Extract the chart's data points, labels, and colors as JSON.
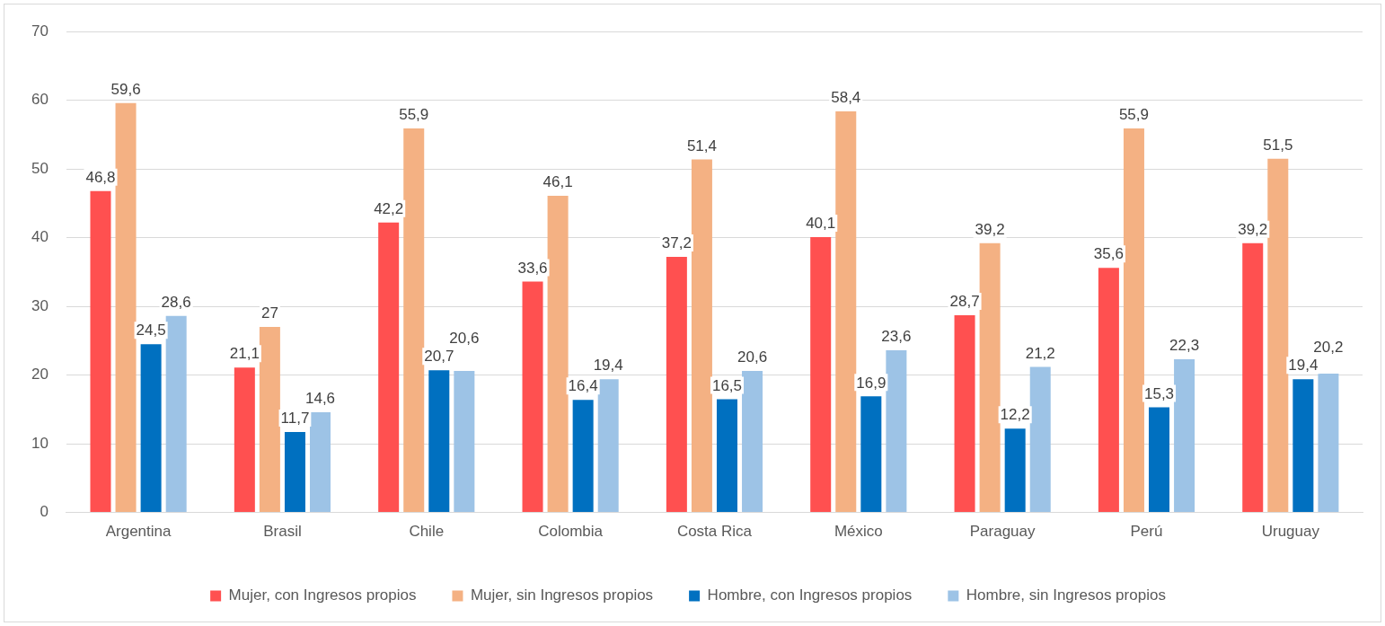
{
  "chart_data": {
    "type": "bar",
    "categories": [
      "Argentina",
      "Brasil",
      "Chile",
      "Colombia",
      "Costa Rica",
      "México",
      "Paraguay",
      "Perú",
      "Uruguay"
    ],
    "ylim": [
      0,
      70
    ],
    "yticks": [
      0,
      10,
      20,
      30,
      40,
      50,
      60,
      70
    ],
    "grid": "y",
    "legend": "bottom",
    "series": [
      {
        "name": "Mujer, con Ingresos propios",
        "color": "#ff5050",
        "values": [
          46.8,
          21.1,
          42.2,
          33.6,
          37.2,
          40.1,
          28.7,
          35.6,
          39.2
        ],
        "value_labels": [
          "46,8",
          "21,1",
          "42,2",
          "33,6",
          "37,2",
          "40,1",
          "28,7",
          "35,6",
          "39,2"
        ]
      },
      {
        "name": "Mujer, sin Ingresos propios",
        "color": "#f4b183",
        "values": [
          59.6,
          27,
          55.9,
          46.1,
          51.4,
          58.4,
          39.2,
          55.9,
          51.5
        ],
        "value_labels": [
          "59,6",
          "27",
          "55,9",
          "46,1",
          "51,4",
          "58,4",
          "39,2",
          "55,9",
          "51,5"
        ]
      },
      {
        "name": "Hombre, con Ingresos propios",
        "color": "#0070c0",
        "values": [
          24.5,
          11.7,
          20.7,
          16.4,
          16.5,
          16.9,
          12.2,
          15.3,
          19.4
        ],
        "value_labels": [
          "24,5",
          "11,7",
          "20,7",
          "16,4",
          "16,5",
          "16,9",
          "12,2",
          "15,3",
          "19,4"
        ]
      },
      {
        "name": "Hombre, sin Ingresos propios",
        "color": "#9dc3e6",
        "values": [
          28.6,
          14.6,
          20.6,
          19.4,
          20.6,
          23.6,
          21.2,
          22.3,
          20.2
        ],
        "value_labels": [
          "28,6",
          "14,6",
          "20,6",
          "19,4",
          "20,6",
          "23,6",
          "21,2",
          "22,3",
          "20,2"
        ]
      }
    ]
  }
}
